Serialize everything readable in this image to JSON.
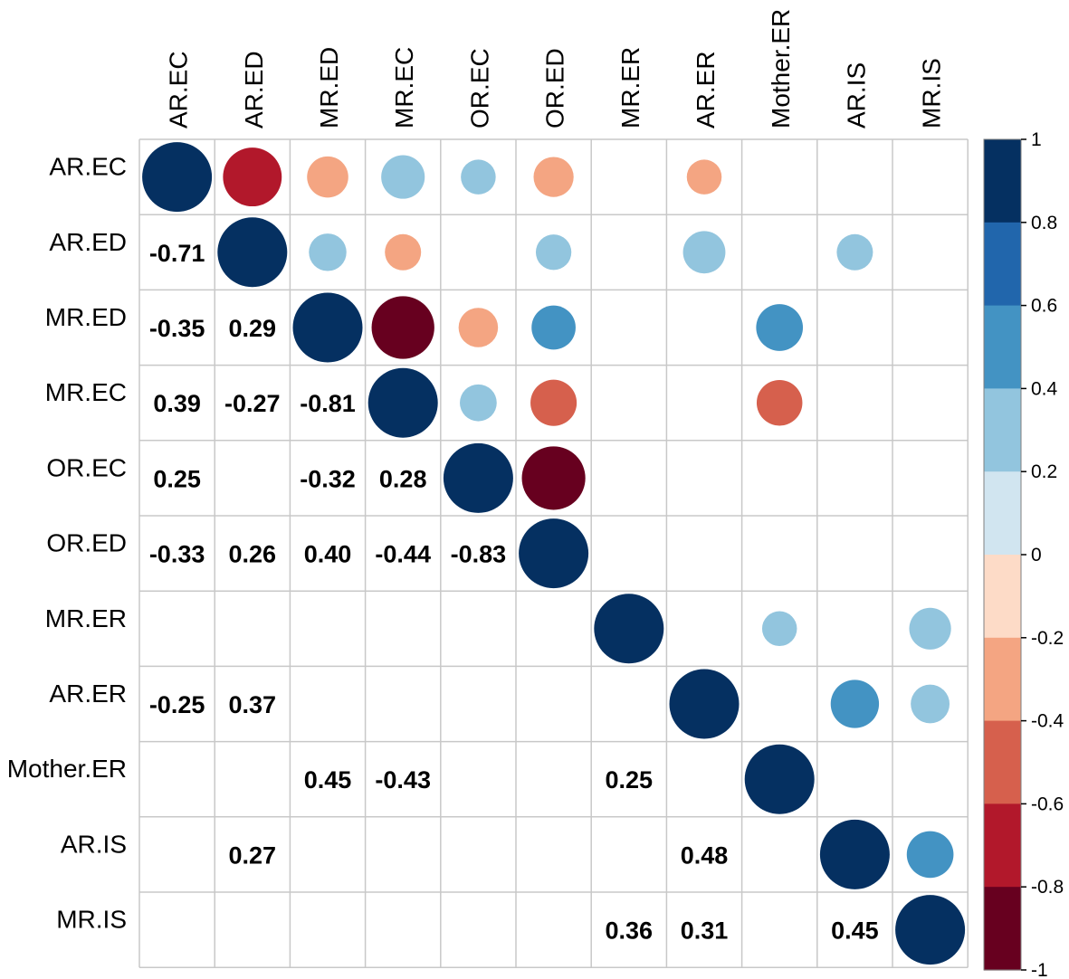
{
  "chart_data": {
    "type": "heatmap",
    "subtype": "correlation-matrix-mixed",
    "upper_style": "circle",
    "lower_style": "number",
    "variables": [
      "AR.EC",
      "AR.ED",
      "MR.ED",
      "MR.EC",
      "OR.EC",
      "OR.ED",
      "MR.ER",
      "AR.ER",
      "Mother.ER",
      "AR.IS",
      "MR.IS"
    ],
    "matrix": [
      [
        1,
        -0.71,
        -0.35,
        0.39,
        0.25,
        -0.33,
        null,
        -0.25,
        null,
        null,
        null
      ],
      [
        -0.71,
        1,
        0.29,
        -0.27,
        null,
        0.26,
        null,
        0.37,
        null,
        0.27,
        null
      ],
      [
        -0.35,
        0.29,
        1,
        -0.81,
        -0.32,
        0.4,
        null,
        null,
        0.45,
        null,
        null
      ],
      [
        0.39,
        -0.27,
        -0.81,
        1,
        0.28,
        -0.44,
        null,
        null,
        -0.43,
        null,
        null
      ],
      [
        0.25,
        null,
        -0.32,
        0.28,
        1,
        -0.83,
        null,
        null,
        null,
        null,
        null
      ],
      [
        -0.33,
        0.26,
        0.4,
        -0.44,
        -0.83,
        1,
        null,
        null,
        null,
        null,
        null
      ],
      [
        null,
        null,
        null,
        null,
        null,
        null,
        1,
        null,
        0.25,
        null,
        0.36
      ],
      [
        -0.25,
        0.37,
        null,
        null,
        null,
        null,
        null,
        1,
        null,
        0.48,
        0.31
      ],
      [
        null,
        null,
        0.45,
        -0.43,
        null,
        null,
        0.25,
        null,
        1,
        null,
        null
      ],
      [
        null,
        0.27,
        null,
        null,
        null,
        null,
        null,
        0.48,
        null,
        1,
        0.45
      ],
      [
        null,
        null,
        null,
        null,
        null,
        null,
        0.36,
        0.31,
        null,
        0.45,
        1
      ]
    ],
    "number_labels": [
      [
        null,
        null,
        null,
        null,
        null,
        null,
        null,
        null,
        null,
        null,
        null
      ],
      [
        "-0.71",
        null,
        null,
        null,
        null,
        null,
        null,
        null,
        null,
        null,
        null
      ],
      [
        "-0.35",
        "0.29",
        null,
        null,
        null,
        null,
        null,
        null,
        null,
        null,
        null
      ],
      [
        "0.39",
        "-0.27",
        "-0.81",
        null,
        null,
        null,
        null,
        null,
        null,
        null,
        null
      ],
      [
        "0.25",
        null,
        "-0.32",
        "0.28",
        null,
        null,
        null,
        null,
        null,
        null,
        null
      ],
      [
        "-0.33",
        "0.26",
        "0.40",
        "-0.44",
        "-0.83",
        null,
        null,
        null,
        null,
        null,
        null
      ],
      [
        null,
        null,
        null,
        null,
        null,
        null,
        null,
        null,
        null,
        null,
        null
      ],
      [
        "-0.25",
        "0.37",
        null,
        null,
        null,
        null,
        null,
        null,
        null,
        null,
        null
      ],
      [
        null,
        null,
        "0.45",
        "-0.43",
        null,
        null,
        "0.25",
        null,
        null,
        null,
        null
      ],
      [
        null,
        "0.27",
        null,
        null,
        null,
        null,
        null,
        "0.48",
        null,
        null,
        null
      ],
      [
        null,
        null,
        null,
        null,
        null,
        null,
        "0.36",
        "0.31",
        null,
        "0.45",
        null
      ]
    ],
    "colorbar": {
      "range": [
        -1,
        1
      ],
      "ticks": [
        "1",
        "0.8",
        "0.6",
        "0.4",
        "0.2",
        "0",
        "-0.2",
        "-0.4",
        "-0.6",
        "-0.8",
        "-1"
      ],
      "bin_colors_top_to_bottom": [
        "#053061",
        "#2166ac",
        "#4393c3",
        "#92c5de",
        "#d1e5f0",
        "#fddbc7",
        "#f4a582",
        "#d6604d",
        "#b2182b",
        "#67001f"
      ]
    },
    "grid": true,
    "legend_position": "right"
  }
}
